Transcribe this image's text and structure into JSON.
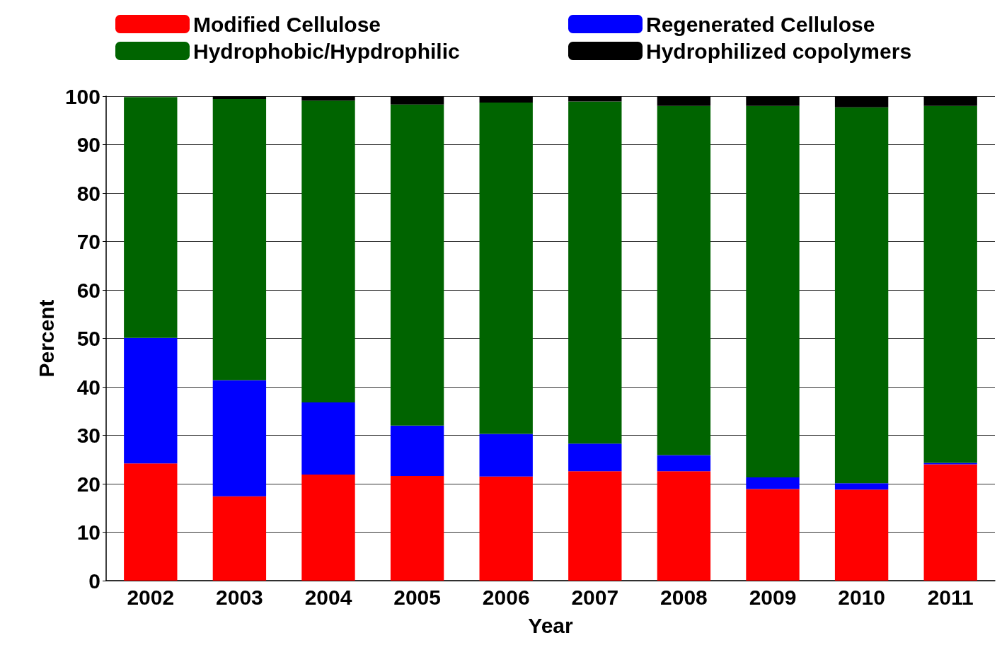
{
  "chart_data": {
    "type": "bar",
    "stacked": true,
    "xlabel": "Year",
    "ylabel": "Percent",
    "categories": [
      "2002",
      "2003",
      "2004",
      "2005",
      "2006",
      "2007",
      "2008",
      "2009",
      "2010",
      "2011"
    ],
    "series": [
      {
        "name": "Modified Cellulose",
        "color": "#ff0000",
        "values": [
          24.2,
          17.4,
          21.9,
          21.6,
          21.5,
          22.6,
          22.6,
          18.9,
          18.8,
          24.0
        ]
      },
      {
        "name": "Regenerated Cellulose",
        "color": "#0000ff",
        "values": [
          25.9,
          24.0,
          14.9,
          10.4,
          8.8,
          5.7,
          3.3,
          2.4,
          1.3,
          0.3
        ]
      },
      {
        "name": "Hydrophobic/Hypdrophilic",
        "color": "#006400",
        "values": [
          49.7,
          58.0,
          62.3,
          66.3,
          68.4,
          70.6,
          72.1,
          76.7,
          77.6,
          73.7
        ]
      },
      {
        "name": "Hydrophilized copolymers",
        "color": "#000000",
        "values": [
          null,
          0.6,
          0.9,
          1.7,
          1.3,
          1.1,
          2.0,
          2.0,
          2.3,
          2.0
        ]
      }
    ],
    "ylim": [
      0,
      100
    ],
    "yticks": [
      0,
      10,
      20,
      30,
      40,
      50,
      60,
      70,
      80,
      90,
      100
    ],
    "grid": "y",
    "legend": "top"
  }
}
